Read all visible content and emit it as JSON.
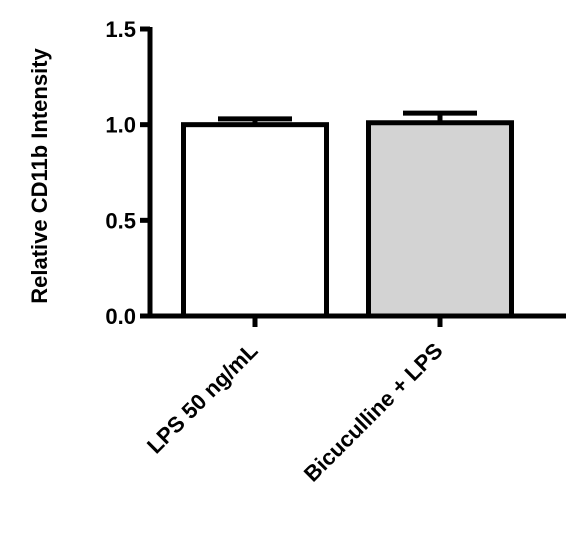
{
  "chart_data": {
    "type": "bar",
    "title": "",
    "xlabel": "",
    "ylabel": "Relative CD11b Intensity",
    "ylim": [
      0,
      1.5
    ],
    "yticks": [
      0.0,
      0.5,
      1.0,
      1.5
    ],
    "ytick_labels": [
      "0.0",
      "0.5",
      "1.0",
      "1.5"
    ],
    "categories": [
      "LPS 50 ng/mL",
      "Bicuculline + LPS"
    ],
    "values": [
      1.0,
      1.01
    ],
    "error_upper": [
      0.03,
      0.05
    ],
    "bar_colors": [
      "#ffffff",
      "#d3d3d3"
    ],
    "edge_color": "#000000",
    "grid": false,
    "legend": "none"
  }
}
